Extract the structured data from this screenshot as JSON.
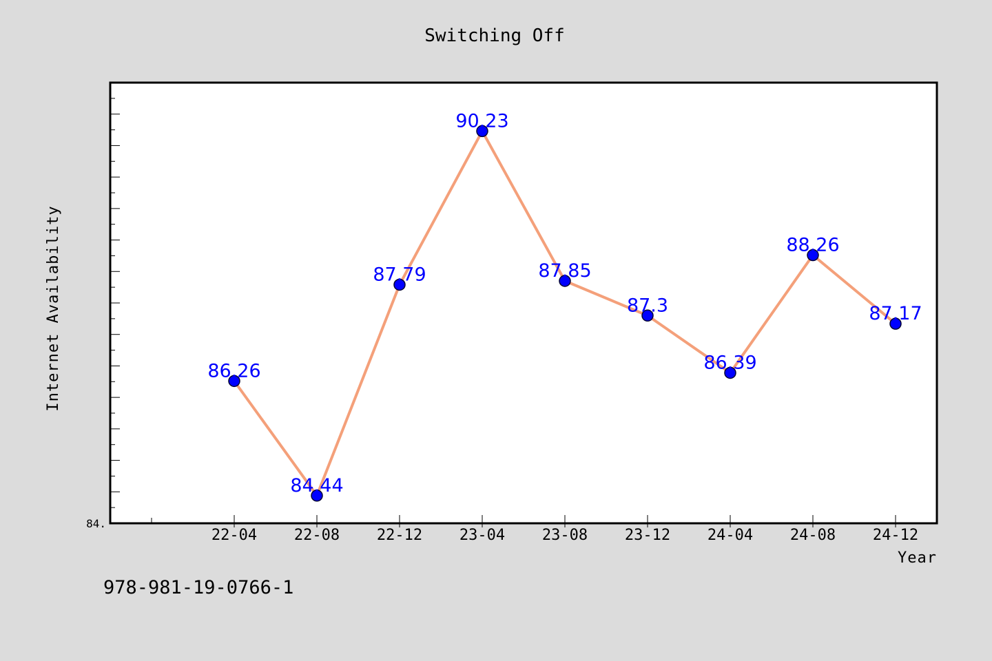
{
  "chart_data": {
    "type": "line",
    "title": "Switching Off",
    "xlabel": "Year",
    "ylabel": "Internet Availability",
    "categories": [
      "22-04",
      "22-08",
      "22-12",
      "23-04",
      "23-08",
      "23-12",
      "24-04",
      "24-08",
      "24-12"
    ],
    "values": [
      86.26,
      84.44,
      87.79,
      90.23,
      87.85,
      87.3,
      86.39,
      88.26,
      87.17
    ],
    "data_labels": [
      "86.26",
      "84.44",
      "87.79",
      "90.23",
      "87.85",
      "87.3",
      "86.39",
      "88.26",
      "87.17"
    ],
    "ylim": [
      84.0,
      91.0
    ],
    "ytick_labels": [
      "84."
    ],
    "grid": false,
    "colors": {
      "line": "#f4a07a",
      "marker": "#0000ff",
      "marker_edge": "#000033",
      "data_label": "#0000ff",
      "background": "#dcdcdc",
      "plot_background": "#ffffff"
    }
  },
  "caption": "978-981-19-0766-1"
}
